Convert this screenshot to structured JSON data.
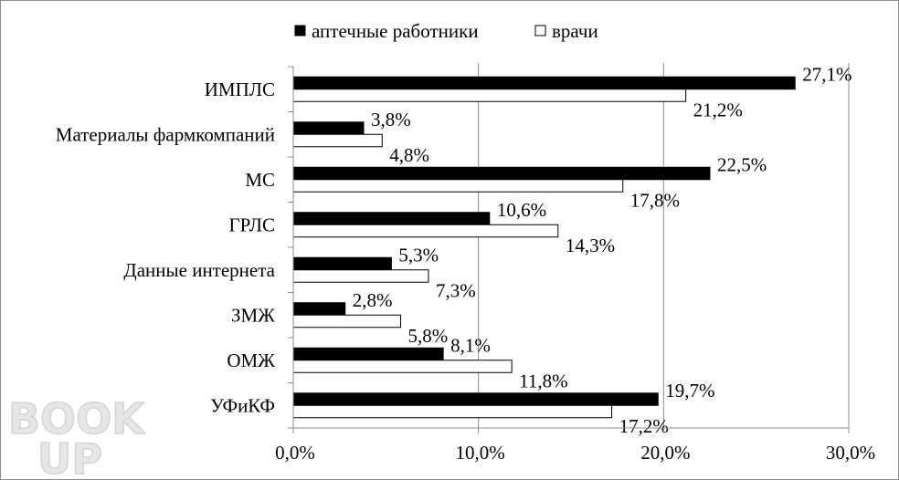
{
  "chart_data": {
    "type": "bar",
    "orientation": "horizontal",
    "categories": [
      "ИМПЛС",
      "Материалы фармкомпаний",
      "МС",
      "ГРЛС",
      "Данные интернета",
      "ЗМЖ",
      "ОМЖ",
      "УФиКФ"
    ],
    "series": [
      {
        "name": "аптечные работники",
        "values": [
          27.1,
          3.8,
          22.5,
          10.6,
          5.3,
          2.8,
          8.1,
          19.7
        ],
        "labels": [
          "27,1%",
          "3,8%",
          "22,5%",
          "10,6%",
          "5,3%",
          "2,8%",
          "8,1%",
          "19,7%"
        ],
        "color": "#000000"
      },
      {
        "name": "врачи",
        "values": [
          21.2,
          4.8,
          17.8,
          14.3,
          7.3,
          5.8,
          11.8,
          17.2
        ],
        "labels": [
          "21,2%",
          "4,8%",
          "17,8%",
          "14,3%",
          "7,3%",
          "5,8%",
          "11,8%",
          "17,2%"
        ],
        "color": "#ffffff"
      }
    ],
    "xlim": [
      0,
      30
    ],
    "xticks": [
      0,
      10,
      20,
      30
    ],
    "xtick_labels": [
      "0,0%",
      "10,0%",
      "20,0%",
      "30,0%"
    ],
    "grid": true,
    "legend": "top"
  },
  "watermark": {
    "text_top": "BOOK",
    "text_bottom": "UP"
  }
}
